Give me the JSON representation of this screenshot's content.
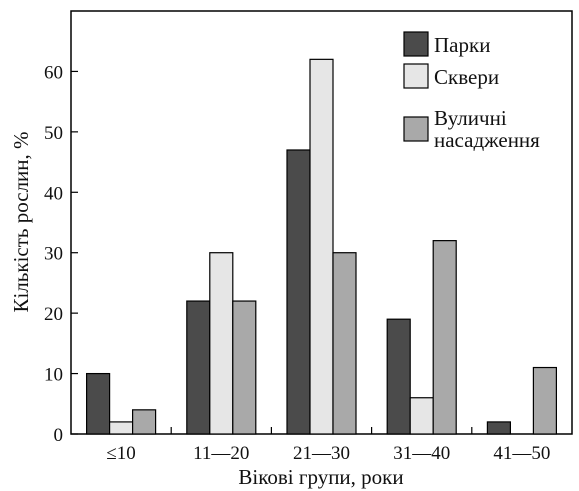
{
  "chart_data": {
    "type": "bar",
    "categories": [
      "≤10",
      "11—20",
      "21—30",
      "31—40",
      "41—50"
    ],
    "series": [
      {
        "name": "Парки",
        "values": [
          10,
          22,
          47,
          19,
          2
        ],
        "color": "#4b4b4b"
      },
      {
        "name": "Сквери",
        "values": [
          2,
          30,
          62,
          6,
          0
        ],
        "color": "#e6e6e6"
      },
      {
        "name": "Вуличні насадження",
        "name_lines": [
          "Вуличні",
          "насадження"
        ],
        "values": [
          4,
          22,
          30,
          32,
          11
        ],
        "color": "#a9a9a9"
      }
    ],
    "title": "",
    "xlabel": "Вікові групи, роки",
    "ylabel": "Кількість рослин, %",
    "ylim": [
      0,
      70
    ],
    "yticks": [
      0,
      10,
      20,
      30,
      40,
      50,
      60
    ],
    "grid": false,
    "legend": "top-right"
  }
}
